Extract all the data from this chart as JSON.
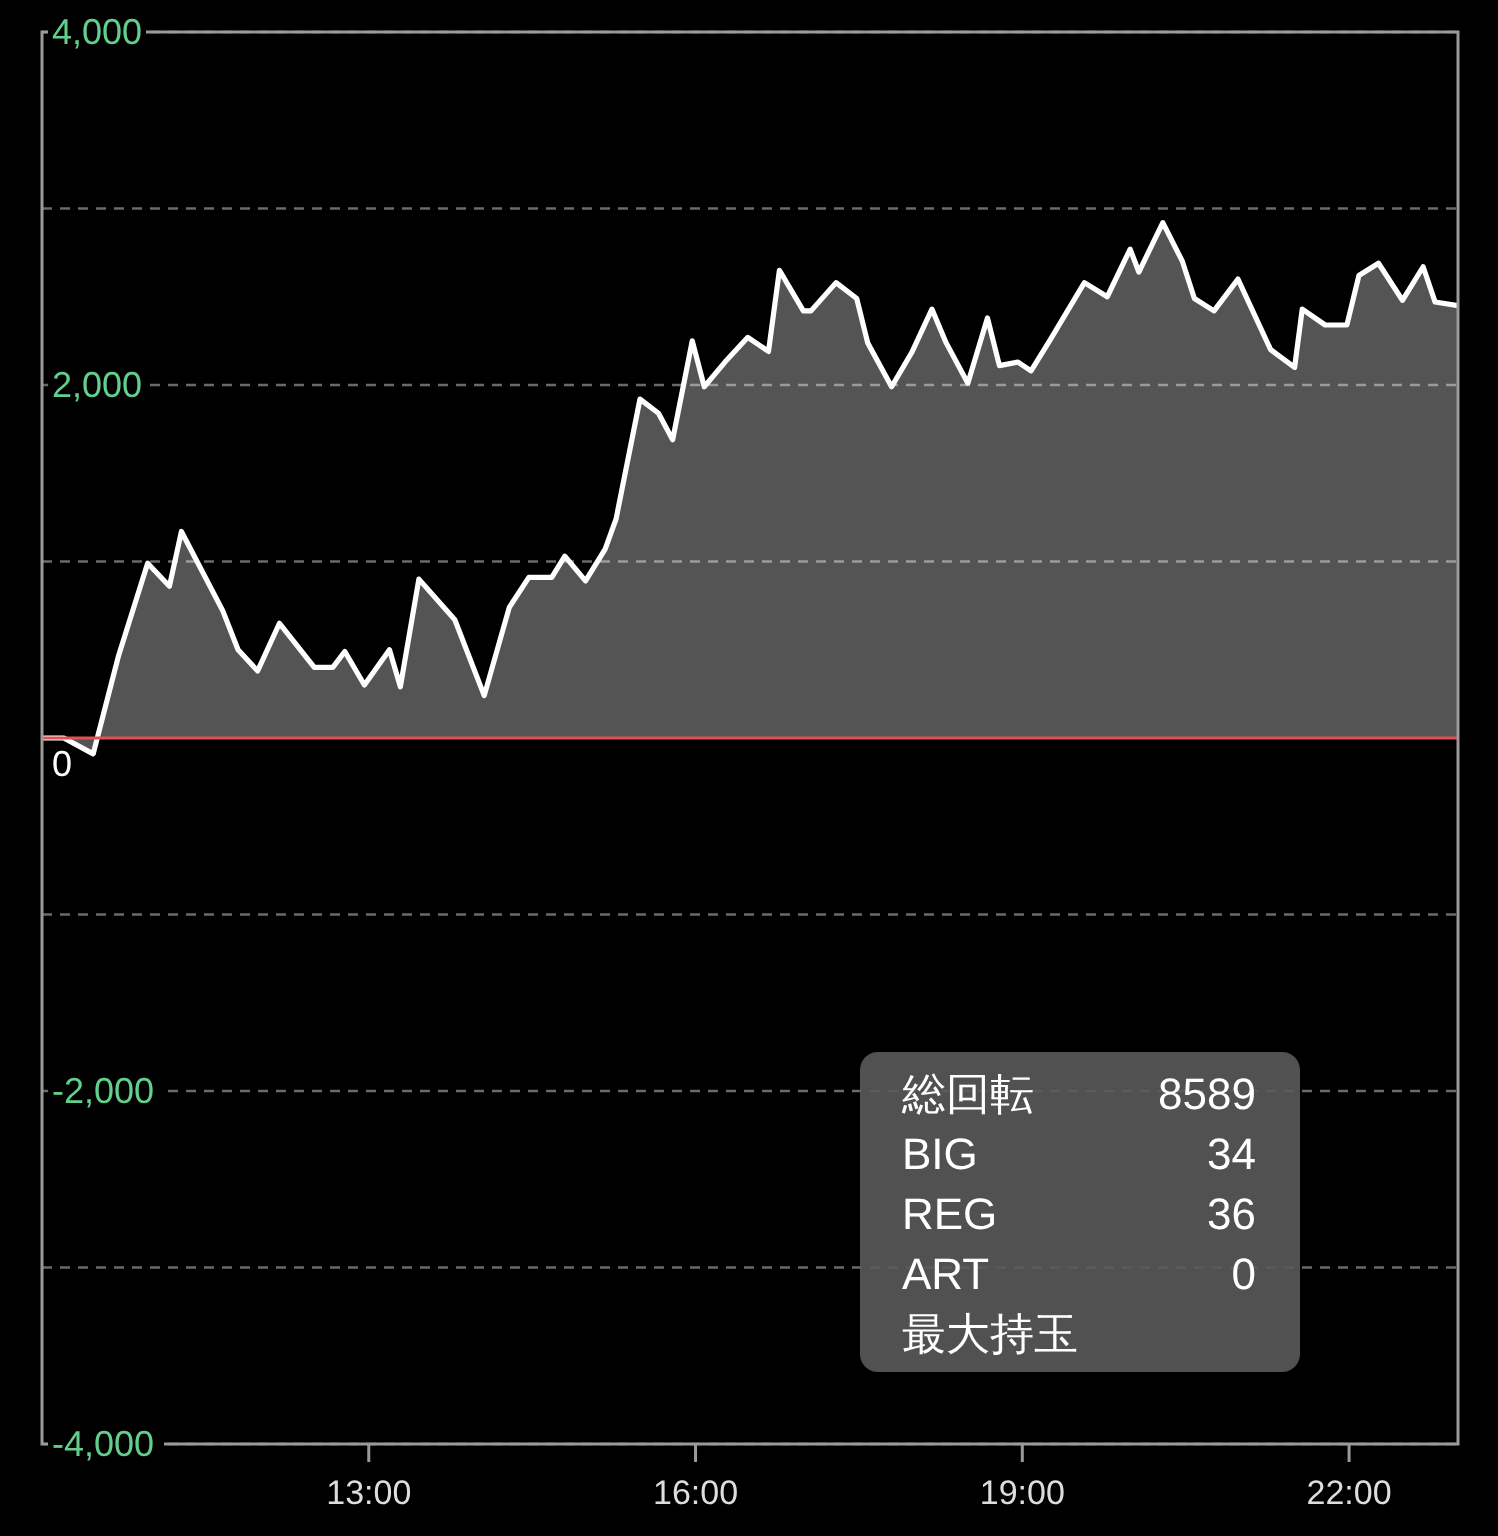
{
  "chart_data": {
    "type": "area",
    "x": [
      10.0,
      10.2,
      10.47,
      10.7,
      10.97,
      11.17,
      11.28,
      11.66,
      11.8,
      11.98,
      12.18,
      12.5,
      12.67,
      12.78,
      12.96,
      13.19,
      13.29,
      13.46,
      13.79,
      14.06,
      14.29,
      14.47,
      14.68,
      14.8,
      14.99,
      15.17,
      15.27,
      15.49,
      15.66,
      15.79,
      15.97,
      16.08,
      16.27,
      16.48,
      16.67,
      16.77,
      16.99,
      17.06,
      17.29,
      17.48,
      17.58,
      17.8,
      17.99,
      18.17,
      18.3,
      18.5,
      18.68,
      18.79,
      18.96,
      19.08,
      19.26,
      19.57,
      19.78,
      19.99,
      20.07,
      20.29,
      20.47,
      20.58,
      20.76,
      20.98,
      21.28,
      21.5,
      21.57,
      21.78,
      21.98,
      22.09,
      22.27,
      22.49,
      22.68,
      22.79,
      23.0
    ],
    "series": [
      {
        "color": "#ffffff",
        "values": [
          0,
          0,
          -90,
          460,
          990,
          860,
          1170,
          720,
          500,
          380,
          650,
          400,
          400,
          490,
          300,
          500,
          290,
          900,
          670,
          240,
          740,
          910,
          910,
          1030,
          890,
          1070,
          1240,
          1920,
          1840,
          1690,
          2250,
          1990,
          2130,
          2270,
          2190,
          2650,
          2420,
          2420,
          2580,
          2490,
          2240,
          1990,
          2190,
          2430,
          2240,
          2010,
          2380,
          2110,
          2130,
          2080,
          2260,
          2580,
          2500,
          2770,
          2640,
          2920,
          2700,
          2490,
          2420,
          2600,
          2200,
          2100,
          2430,
          2340,
          2340,
          2620,
          2690,
          2480,
          2670,
          2470,
          2450
        ]
      }
    ],
    "xlim": [
      10,
      23
    ],
    "xticks": [
      {
        "value": 13,
        "label": "13:00"
      },
      {
        "value": 16,
        "label": "16:00"
      },
      {
        "value": 19,
        "label": "19:00"
      },
      {
        "value": 22,
        "label": "22:00"
      }
    ],
    "ylim": [
      -4000,
      4000
    ],
    "yticks": [
      {
        "value": -4000,
        "label": "-4,000"
      },
      {
        "value": -3000,
        "label": null
      },
      {
        "value": -2000,
        "label": "-2,000"
      },
      {
        "value": -1000,
        "label": null
      },
      {
        "value": 1000,
        "label": null
      },
      {
        "value": 2000,
        "label": "2,000"
      },
      {
        "value": 3000,
        "label": null
      },
      {
        "value": 4000,
        "label": "4,000"
      }
    ],
    "grid": "y",
    "ref_lines": [
      {
        "axis": "y",
        "value": 0,
        "label": "0",
        "color": "#e05252"
      }
    ],
    "annotations": [
      "総回転",
      "8589",
      "BIG",
      "34",
      "REG",
      "36",
      "ART",
      "0",
      "最大持玉"
    ]
  }
}
